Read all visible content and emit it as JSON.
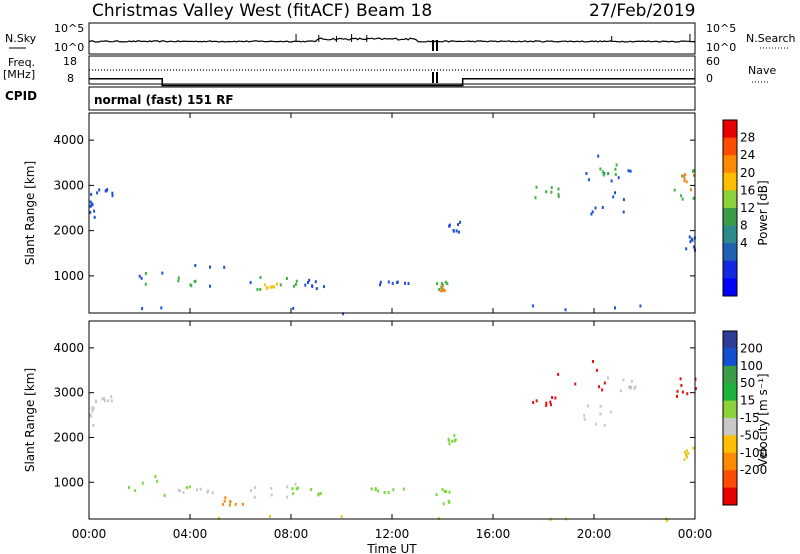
{
  "header": {
    "station": "Christmas Valley West (fitACF)",
    "beam": "Beam 18",
    "date": "27/Feb/2019"
  },
  "mode_line": "normal (fast) 151 RF",
  "colors": {
    "line": "#000000",
    "scatter_blue": "#1f4fd8",
    "scatter_green": "#3fb24a",
    "scatter_yellow": "#e9c71c",
    "scatter_orange": "#f08a1c",
    "scatter_red": "#e01414",
    "vel_green": "#7ad63c",
    "vel_gray": "#c8c8c8"
  },
  "chart_data": [
    {
      "type": "line",
      "name": "noise panel",
      "left_label": "N.Sky",
      "right_label": "N.Search",
      "left_ticks": [
        "10^5",
        "10^0"
      ],
      "right_ticks": [
        "10^5",
        "10^0"
      ],
      "xlim": [
        0,
        24
      ]
    },
    {
      "type": "line",
      "name": "frequency panel",
      "left_label_top": "Freq.",
      "left_label_bottom": "[MHz]",
      "right_label": "Nave",
      "left_ticks": [
        "18",
        "8"
      ],
      "right_ticks": [
        "60",
        "0"
      ],
      "cpid_label": "CPID",
      "freq_segments": [
        {
          "x": [
            0,
            2.9
          ],
          "y": 11.3
        },
        {
          "x": [
            2.9,
            14.8
          ],
          "y": 8.9
        },
        {
          "x": [
            14.8,
            24
          ],
          "y": 11.3
        }
      ],
      "xlim": [
        0,
        24
      ]
    },
    {
      "type": "heatmap",
      "name": "power",
      "xlabel": "",
      "ylabel": "Slant Range [km]",
      "ylim": [
        180,
        4600
      ],
      "xlim": [
        0,
        24
      ],
      "y_ticks": [
        "4000",
        "3000",
        "2000",
        "1000"
      ],
      "colorbar": {
        "label": "Power [dB]",
        "ticks": [
          "28",
          "24",
          "20",
          "16",
          "12",
          "8",
          "4"
        ],
        "colors": [
          "#e60000",
          "#ff4b00",
          "#ff8a00",
          "#ffbf00",
          "#8cd23c",
          "#3c9b46",
          "#2d8a8a",
          "#1f5fb4",
          "#1328e0",
          "#0000ff"
        ]
      },
      "regions": [
        {
          "t": [
            0.0,
            0.9
          ],
          "r": [
            2800,
            2950
          ],
          "c": "blue"
        },
        {
          "t": [
            0.0,
            0.2
          ],
          "r": [
            2300,
            2700
          ],
          "c": "blue"
        },
        {
          "t": [
            1.2,
            6.5
          ],
          "r": [
            700,
            1300
          ],
          "c": "blue"
        },
        {
          "t": [
            2.0,
            5.5
          ],
          "r": [
            800,
            1100
          ],
          "c": "green"
        },
        {
          "t": [
            6.0,
            8.5
          ],
          "r": [
            700,
            1000
          ],
          "c": "green"
        },
        {
          "t": [
            6.8,
            7.6
          ],
          "r": [
            750,
            900
          ],
          "c": "yellow"
        },
        {
          "t": [
            8.5,
            9.3
          ],
          "r": [
            750,
            950
          ],
          "c": "blue"
        },
        {
          "t": [
            11.0,
            13.0
          ],
          "r": [
            800,
            900
          ],
          "c": "blue"
        },
        {
          "t": [
            13.7,
            14.3
          ],
          "r": [
            650,
            900
          ],
          "c": "green"
        },
        {
          "t": [
            13.8,
            14.2
          ],
          "r": [
            700,
            800
          ],
          "c": "orange"
        },
        {
          "t": [
            14.2,
            14.7
          ],
          "r": [
            2000,
            2400
          ],
          "c": "blue"
        },
        {
          "t": [
            17.5,
            18.6
          ],
          "r": [
            2700,
            3000
          ],
          "c": "green"
        },
        {
          "t": [
            19.3,
            21.5
          ],
          "r": [
            3100,
            3700
          ],
          "c": "blue"
        },
        {
          "t": [
            20.0,
            21.0
          ],
          "r": [
            3200,
            3500
          ],
          "c": "green"
        },
        {
          "t": [
            19.5,
            21.3
          ],
          "r": [
            2400,
            2900
          ],
          "c": "blue"
        },
        {
          "t": [
            22.8,
            24.0
          ],
          "r": [
            2600,
            3400
          ],
          "c": "green"
        },
        {
          "t": [
            23.4,
            24.0
          ],
          "r": [
            2900,
            3300
          ],
          "c": "orange"
        },
        {
          "t": [
            23.4,
            24.0
          ],
          "r": [
            1600,
            1900
          ],
          "c": "blue"
        },
        {
          "t": [
            0.0,
            24.0
          ],
          "r": [
            180,
            380
          ],
          "c": "blue"
        }
      ]
    },
    {
      "type": "heatmap",
      "name": "velocity",
      "xlabel": "Time UT",
      "ylabel": "Slant Range [km]",
      "ylim": [
        180,
        4600
      ],
      "xlim": [
        0,
        24
      ],
      "y_ticks": [
        "4000",
        "3000",
        "2000",
        "1000"
      ],
      "x_ticks": [
        "00:00",
        "04:00",
        "08:00",
        "12:00",
        "16:00",
        "20:00",
        "00:00"
      ],
      "colorbar": {
        "label": "Velocity [m s⁻¹]",
        "ticks": [
          "200",
          "100",
          "50",
          "15",
          "-15",
          "-50",
          "-100",
          "-200"
        ],
        "colors": [
          "#2d3c96",
          "#1450d2",
          "#3c9b46",
          "#1eb43c",
          "#8cd23c",
          "#c8c8c8",
          "#ffbf00",
          "#ff8a00",
          "#ff4b00",
          "#e60000"
        ]
      },
      "regions": [
        {
          "t": [
            0.0,
            0.9
          ],
          "r": [
            2800,
            2950
          ],
          "c": "gray"
        },
        {
          "t": [
            0.0,
            0.2
          ],
          "r": [
            2300,
            2700
          ],
          "c": "gray"
        },
        {
          "t": [
            1.2,
            4.2
          ],
          "r": [
            700,
            1300
          ],
          "c": "green"
        },
        {
          "t": [
            3.5,
            5.0
          ],
          "r": [
            750,
            1000
          ],
          "c": "gray"
        },
        {
          "t": [
            5.2,
            6.2
          ],
          "r": [
            500,
            700
          ],
          "c": "orange"
        },
        {
          "t": [
            6.0,
            8.5
          ],
          "r": [
            650,
            1000
          ],
          "c": "gray"
        },
        {
          "t": [
            8.0,
            9.3
          ],
          "r": [
            700,
            950
          ],
          "c": "green"
        },
        {
          "t": [
            11.0,
            13.0
          ],
          "r": [
            800,
            900
          ],
          "c": "green"
        },
        {
          "t": [
            13.7,
            14.3
          ],
          "r": [
            550,
            900
          ],
          "c": "green"
        },
        {
          "t": [
            14.2,
            14.5
          ],
          "r": [
            1800,
            2200
          ],
          "c": "green"
        },
        {
          "t": [
            17.3,
            18.5
          ],
          "r": [
            2700,
            2950
          ],
          "c": "red"
        },
        {
          "t": [
            18.5,
            21.6
          ],
          "r": [
            3000,
            3750
          ],
          "c": "red"
        },
        {
          "t": [
            20.5,
            21.8
          ],
          "r": [
            3000,
            3400
          ],
          "c": "gray"
        },
        {
          "t": [
            23.2,
            24.0
          ],
          "r": [
            2800,
            3400
          ],
          "c": "red"
        },
        {
          "t": [
            19.5,
            21.0
          ],
          "r": [
            2300,
            2800
          ],
          "c": "gray"
        },
        {
          "t": [
            23.4,
            24.0
          ],
          "r": [
            1500,
            1800
          ],
          "c": "yellow"
        },
        {
          "t": [
            0.0,
            24.0
          ],
          "r": [
            180,
            380
          ],
          "c": "yellow"
        }
      ]
    }
  ]
}
